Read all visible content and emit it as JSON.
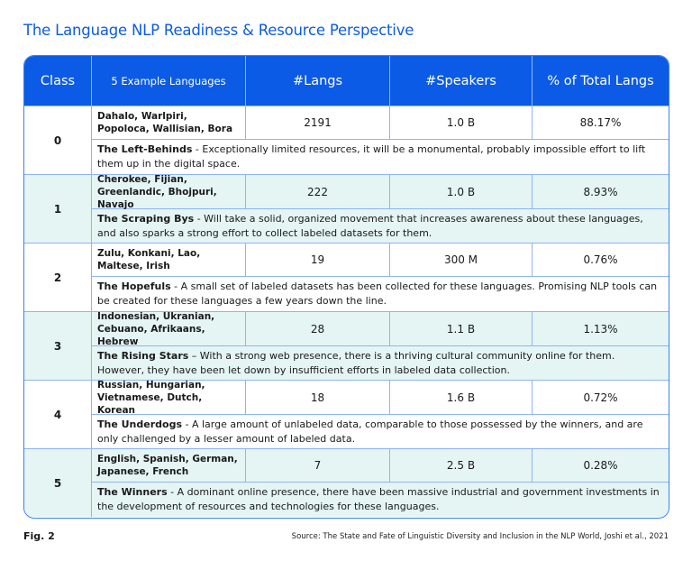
{
  "title": "The Language NLP Readiness & Resource Perspective",
  "headers": [
    "Class",
    "5 Example Languages",
    "#Langs",
    "#Speakers",
    "% of Total Langs"
  ],
  "rows": [
    {
      "cls": "0",
      "langs": "Dahalo, Warlpiri, Popoloca, Wallisian, Bora",
      "n": "2191",
      "speakers": "1.0 B",
      "pct": "88.17%",
      "name": "The Left-Behinds",
      "desc": " - Exceptionally limited resources, it will be a monumental, probably impossible effort to lift them up in the digital space."
    },
    {
      "cls": "1",
      "langs": "Cherokee, Fijian, Greenlandic, Bhojpuri, Navajo",
      "n": "222",
      "speakers": "1.0 B",
      "pct": "8.93%",
      "name": "The Scraping Bys",
      "desc": " - Will take a solid, organized movement that increases awareness about these languages, and also sparks a strong effort to collect labeled datasets for them."
    },
    {
      "cls": "2",
      "langs": "Zulu, Konkani, Lao, Maltese, Irish",
      "n": "19",
      "speakers": "300 M",
      "pct": "0.76%",
      "name": "The Hopefuls",
      "desc": " - A small set of labeled datasets has been collected for these languages. Promising NLP tools can be created for these languages a few years down the line."
    },
    {
      "cls": "3",
      "langs": "Indonesian, Ukranian, Cebuano, Afrikaans, Hebrew",
      "n": "28",
      "speakers": "1.1 B",
      "pct": "1.13%",
      "name": "The Rising Stars",
      "desc": " – With a strong web presence, there is a thriving cultural community online for them. However, they have been let down by insufficient efforts in labeled data collection."
    },
    {
      "cls": "4",
      "langs": "Russian, Hungarian, Vietnamese, Dutch, Korean",
      "n": "18",
      "speakers": "1.6 B",
      "pct": "0.72%",
      "name": "The Underdogs",
      "desc": " - A large amount of unlabeled data, comparable to those possessed by the winners, and are only challenged by a lesser amount of labeled data."
    },
    {
      "cls": "5",
      "langs": "English, Spanish, German, Japanese, French",
      "n": "7",
      "speakers": "2.5 B",
      "pct": "0.28%",
      "name": "The Winners",
      "desc": " - A dominant online presence, there have been massive industrial and government investments in the development of resources and technologies for these languages."
    }
  ],
  "fig": "Fig. 2",
  "source": "Source: The State and Fate of Linguistic Diversity and Inclusion in the NLP World, Joshi et al., 2021",
  "colors": {
    "accent": "#0b5be6",
    "alt_row": "#e4f5f3"
  }
}
